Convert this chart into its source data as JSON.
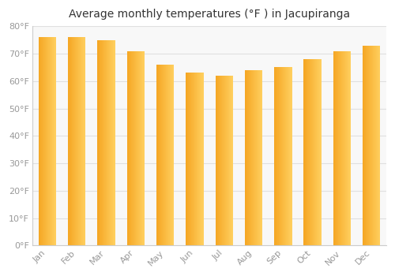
{
  "title": "Average monthly temperatures (°F ) in Jacupiranga",
  "months": [
    "Jan",
    "Feb",
    "Mar",
    "Apr",
    "May",
    "Jun",
    "Jul",
    "Aug",
    "Sep",
    "Oct",
    "Nov",
    "Dec"
  ],
  "values": [
    76,
    76,
    75,
    71,
    66,
    63,
    62,
    64,
    65,
    68,
    71,
    73
  ],
  "bar_color_left": "#F5A623",
  "bar_color_right": "#FFD060",
  "background_color": "#FFFFFF",
  "plot_bg_color": "#F8F8F8",
  "ylim": [
    0,
    80
  ],
  "yticks": [
    0,
    10,
    20,
    30,
    40,
    50,
    60,
    70,
    80
  ],
  "ytick_labels": [
    "0°F",
    "10°F",
    "20°F",
    "30°F",
    "40°F",
    "50°F",
    "60°F",
    "70°F",
    "80°F"
  ],
  "title_fontsize": 10,
  "tick_fontsize": 8,
  "grid_color": "#E0E0E0",
  "spine_color": "#CCCCCC",
  "tick_color": "#999999"
}
